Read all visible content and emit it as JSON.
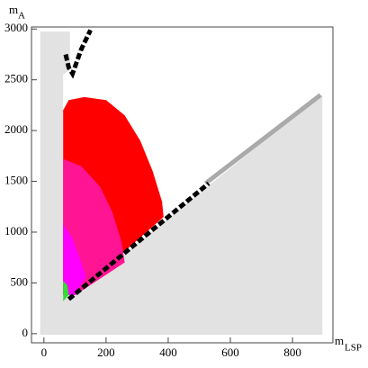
{
  "chart_data": {
    "type": "region",
    "x_label": {
      "symbol": "m",
      "subscript": "LSP"
    },
    "y_label": {
      "symbol": "m",
      "subscript": "A"
    },
    "xlim": [
      -40,
      930
    ],
    "ylim": [
      -90,
      3020
    ],
    "xticks": [
      0,
      200,
      400,
      600,
      800
    ],
    "yticks": [
      0,
      500,
      1000,
      1500,
      2000,
      2500,
      3000
    ],
    "regions": [
      {
        "color": "#e2e2e2",
        "points": [
          [
            -12,
            2975
          ],
          [
            84,
            2975
          ],
          [
            84,
            2600
          ],
          [
            62,
            2550
          ],
          [
            62,
            400
          ],
          [
            80,
            340
          ],
          [
            890,
            2350
          ],
          [
            896,
            2350
          ],
          [
            896,
            -10
          ],
          [
            -12,
            -10
          ]
        ]
      },
      {
        "color": "#ff0000",
        "points": [
          [
            62,
            2200
          ],
          [
            80,
            2300
          ],
          [
            130,
            2330
          ],
          [
            200,
            2300
          ],
          [
            260,
            2150
          ],
          [
            310,
            1900
          ],
          [
            350,
            1600
          ],
          [
            380,
            1300
          ],
          [
            385,
            1150
          ],
          [
            100,
            380
          ],
          [
            62,
            380
          ]
        ]
      },
      {
        "color": "#ff1493",
        "points": [
          [
            62,
            1720
          ],
          [
            120,
            1650
          ],
          [
            180,
            1450
          ],
          [
            220,
            1200
          ],
          [
            250,
            900
          ],
          [
            260,
            700
          ],
          [
            100,
            380
          ],
          [
            62,
            380
          ]
        ]
      },
      {
        "color": "#ff00ff",
        "points": [
          [
            62,
            1080
          ],
          [
            90,
            950
          ],
          [
            120,
            700
          ],
          [
            135,
            560
          ],
          [
            100,
            380
          ],
          [
            62,
            380
          ]
        ]
      },
      {
        "color": "#33dd33",
        "points": [
          [
            62,
            520
          ],
          [
            75,
            480
          ],
          [
            80,
            380
          ],
          [
            62,
            320
          ]
        ]
      }
    ],
    "lines": [
      {
        "color": "#aaaaaa",
        "dashed": false,
        "points": [
          [
            520,
            1480
          ],
          [
            890,
            2350
          ]
        ]
      },
      {
        "color": "#000000",
        "dashed": true,
        "points": [
          [
            80,
            340
          ],
          [
            530,
            1480
          ]
        ]
      },
      {
        "color": "#000000",
        "dashed": true,
        "points": [
          [
            70,
            2750
          ],
          [
            80,
            2620
          ],
          [
            92,
            2560
          ],
          [
            120,
            2800
          ],
          [
            150,
            2990
          ]
        ]
      }
    ]
  }
}
